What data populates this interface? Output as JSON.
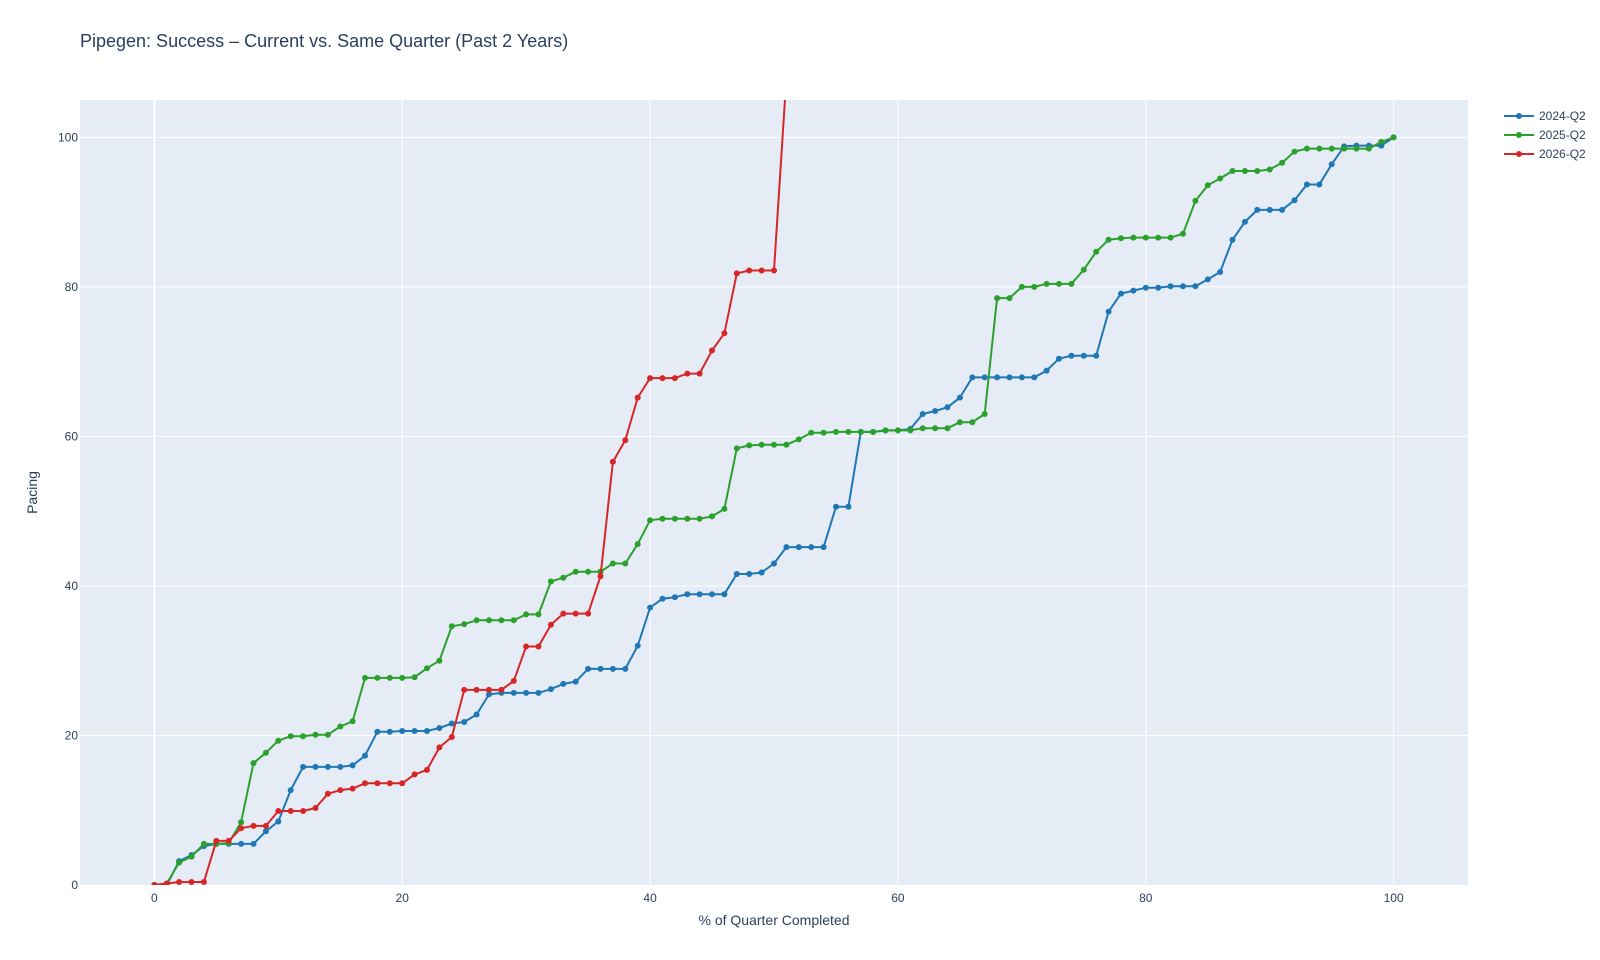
{
  "chart_data": {
    "type": "line",
    "title": "Pipegen: Success – Current vs. Same Quarter (Past 2 Years)",
    "xlabel": "% of Quarter Completed",
    "ylabel": "Pacing",
    "xlim": [
      -6,
      106
    ],
    "ylim": [
      0,
      105
    ],
    "x_ticks": [
      0,
      20,
      40,
      60,
      80,
      100
    ],
    "y_ticks": [
      0,
      20,
      40,
      60,
      80,
      100
    ],
    "grid": true,
    "legend_position": "top-right",
    "plot_background": "#e5ecf6",
    "series": [
      {
        "name": "2024-Q2",
        "color": "#1f77b4",
        "x": [
          0,
          1,
          2,
          3,
          4,
          5,
          6,
          7,
          8,
          9,
          10,
          11,
          12,
          13,
          14,
          15,
          16,
          17,
          18,
          19,
          20,
          21,
          22,
          23,
          24,
          25,
          26,
          27,
          28,
          29,
          30,
          31,
          32,
          33,
          34,
          35,
          36,
          37,
          38,
          39,
          40,
          41,
          42,
          43,
          44,
          45,
          46,
          47,
          48,
          49,
          50,
          51,
          52,
          53,
          54,
          55,
          56,
          57,
          58,
          59,
          60,
          61,
          62,
          63,
          64,
          65,
          66,
          67,
          68,
          69,
          70,
          71,
          72,
          73,
          74,
          75,
          76,
          77,
          78,
          79,
          80,
          81,
          82,
          83,
          84,
          85,
          86,
          87,
          88,
          89,
          90,
          91,
          92,
          93,
          94,
          95,
          96,
          97,
          98,
          99,
          100
        ],
        "y": [
          0,
          0,
          3.2,
          4,
          5.2,
          5.5,
          5.5,
          5.5,
          5.5,
          7.2,
          8.5,
          12.7,
          15.8,
          15.8,
          15.8,
          15.8,
          16,
          17.3,
          20.5,
          20.5,
          20.6,
          20.6,
          20.6,
          21,
          21.6,
          21.8,
          22.8,
          25.5,
          25.7,
          25.7,
          25.7,
          25.7,
          26.2,
          26.9,
          27.2,
          28.9,
          28.9,
          28.9,
          28.9,
          32,
          37.1,
          38.3,
          38.5,
          38.9,
          38.9,
          38.9,
          38.9,
          41.6,
          41.6,
          41.8,
          43,
          45.2,
          45.2,
          45.2,
          45.2,
          50.6,
          50.6,
          60.6,
          60.6,
          60.8,
          60.8,
          61,
          63,
          63.4,
          63.9,
          65.2,
          67.9,
          67.9,
          67.9,
          67.9,
          67.9,
          67.9,
          68.8,
          70.4,
          70.8,
          70.8,
          70.8,
          76.7,
          79.1,
          79.5,
          79.9,
          79.9,
          80.1,
          80.1,
          80.1,
          81,
          82,
          86.3,
          88.7,
          90.3,
          90.3,
          90.3,
          91.6,
          93.7,
          93.7,
          96.4,
          98.8,
          98.9,
          98.9,
          98.9,
          100
        ]
      },
      {
        "name": "2025-Q2",
        "color": "#2ca02c",
        "x": [
          0,
          1,
          2,
          3,
          4,
          5,
          6,
          7,
          8,
          9,
          10,
          11,
          12,
          13,
          14,
          15,
          16,
          17,
          18,
          19,
          20,
          21,
          22,
          23,
          24,
          25,
          26,
          27,
          28,
          29,
          30,
          31,
          32,
          33,
          34,
          35,
          36,
          37,
          38,
          39,
          40,
          41,
          42,
          43,
          44,
          45,
          46,
          47,
          48,
          49,
          50,
          51,
          52,
          53,
          54,
          55,
          56,
          57,
          58,
          59,
          60,
          61,
          62,
          63,
          64,
          65,
          66,
          67,
          68,
          69,
          70,
          71,
          72,
          73,
          74,
          75,
          76,
          77,
          78,
          79,
          80,
          81,
          82,
          83,
          84,
          85,
          86,
          87,
          88,
          89,
          90,
          91,
          92,
          93,
          94,
          95,
          96,
          97,
          98,
          99,
          100
        ],
        "y": [
          0,
          0.2,
          3,
          3.8,
          5.5,
          5.5,
          5.6,
          8.4,
          16.3,
          17.7,
          19.3,
          19.9,
          19.9,
          20.1,
          20.1,
          21.2,
          21.9,
          27.7,
          27.7,
          27.7,
          27.7,
          27.8,
          29,
          30,
          34.6,
          34.9,
          35.4,
          35.4,
          35.4,
          35.4,
          36.2,
          36.2,
          40.6,
          41.1,
          41.9,
          41.9,
          41.9,
          43,
          43,
          45.6,
          48.8,
          49,
          49,
          49,
          49,
          49.3,
          50.3,
          58.4,
          58.8,
          58.9,
          58.9,
          58.9,
          59.6,
          60.5,
          60.5,
          60.6,
          60.6,
          60.6,
          60.6,
          60.8,
          60.8,
          60.8,
          61.1,
          61.1,
          61.1,
          61.9,
          61.9,
          63,
          78.5,
          78.5,
          80,
          80,
          80.4,
          80.4,
          80.4,
          82.3,
          84.7,
          86.3,
          86.5,
          86.6,
          86.6,
          86.6,
          86.6,
          87.1,
          91.5,
          93.6,
          94.5,
          95.5,
          95.5,
          95.5,
          95.7,
          96.6,
          98.1,
          98.5,
          98.5,
          98.5,
          98.5,
          98.5,
          98.5,
          99.4,
          100
        ]
      },
      {
        "name": "2026-Q2",
        "color": "#d62728",
        "x": [
          0,
          1,
          2,
          3,
          4,
          5,
          6,
          7,
          8,
          9,
          10,
          11,
          12,
          13,
          14,
          15,
          16,
          17,
          18,
          19,
          20,
          21,
          22,
          23,
          24,
          25,
          26,
          27,
          28,
          29,
          30,
          31,
          32,
          33,
          34,
          35,
          36,
          37,
          38,
          39,
          40,
          41,
          42,
          43,
          44,
          45,
          46,
          47,
          48,
          49,
          50,
          51
        ],
        "y": [
          0,
          0.2,
          0.4,
          0.4,
          0.4,
          5.9,
          5.9,
          7.6,
          7.9,
          7.9,
          9.9,
          9.9,
          9.9,
          10.3,
          12.2,
          12.7,
          12.9,
          13.6,
          13.6,
          13.6,
          13.6,
          14.8,
          15.4,
          18.4,
          19.8,
          26.1,
          26.1,
          26.1,
          26.1,
          27.3,
          31.9,
          31.9,
          34.8,
          36.3,
          36.3,
          36.3,
          41.3,
          56.6,
          59.5,
          65.2,
          67.8,
          67.8,
          67.8,
          68.4,
          68.4,
          71.5,
          73.8,
          81.8,
          82.2,
          82.2,
          82.2,
          108
        ]
      }
    ]
  }
}
